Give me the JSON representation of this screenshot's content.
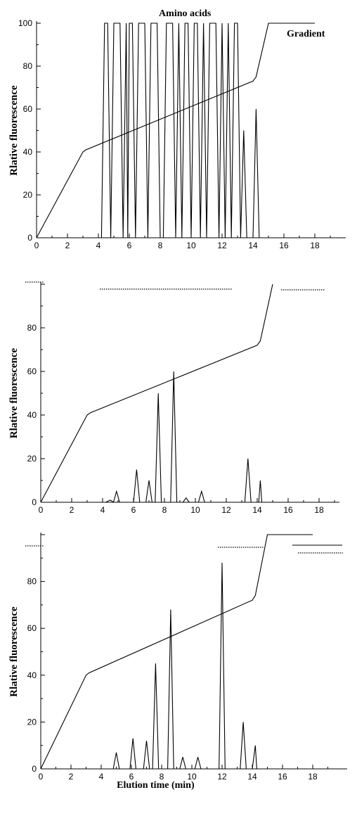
{
  "chart_data": [
    {
      "type": "line",
      "title": "Amino acids",
      "annotation": "Gradient",
      "xlabel": "",
      "ylabel": "Rlative fluorescence",
      "xlim": [
        0,
        19
      ],
      "ylim": [
        0,
        100
      ],
      "xticks": [
        "0",
        "2",
        "4",
        "6",
        "8",
        "10",
        "12",
        "14",
        "16",
        "18"
      ],
      "yticks": [
        "0",
        "20",
        "40",
        "60",
        "80",
        "100"
      ],
      "series": [
        {
          "role": "signal",
          "x": [
            0,
            4.0,
            4.2,
            4.4,
            4.6,
            4.8,
            5.0,
            5.2,
            5.4,
            5.6,
            5.8,
            5.9,
            6.0,
            6.2,
            6.4,
            6.6,
            6.8,
            7.0,
            7.2,
            7.3,
            7.4,
            7.6,
            7.8,
            8.0,
            8.2,
            8.4,
            8.6,
            8.8,
            9.0,
            9.2,
            9.4,
            9.6,
            9.8,
            10.0,
            10.2,
            10.4,
            10.6,
            10.8,
            11.0,
            11.2,
            11.4,
            11.6,
            11.8,
            12.0,
            12.2,
            12.4,
            12.6,
            12.8,
            13.0,
            13.2,
            13.4,
            13.6,
            13.8,
            14.0,
            14.2,
            14.4,
            14.6,
            18
          ],
          "y": [
            0,
            0,
            0,
            100,
            100,
            0,
            100,
            100,
            100,
            0,
            100,
            0,
            100,
            100,
            0,
            100,
            100,
            100,
            0,
            50,
            100,
            100,
            100,
            0,
            0,
            100,
            100,
            100,
            0,
            100,
            0,
            100,
            100,
            0,
            100,
            100,
            0,
            100,
            0,
            100,
            100,
            100,
            0,
            100,
            0,
            100,
            0,
            100,
            100,
            0,
            50,
            0,
            0,
            0,
            60,
            0,
            0,
            0
          ]
        },
        {
          "role": "gradient",
          "x": [
            0,
            3,
            3.2,
            14,
            14.2,
            15,
            18
          ],
          "y": [
            0,
            40,
            41,
            73,
            75,
            100,
            100
          ]
        }
      ]
    },
    {
      "type": "line",
      "title": "",
      "xlabel": "",
      "ylabel": "Rlative fluorescence",
      "xlim": [
        0,
        19
      ],
      "ylim": [
        0,
        100
      ],
      "xticks": [
        "0",
        "2",
        "4",
        "6",
        "8",
        "10",
        "12",
        "14",
        "16",
        "18"
      ],
      "yticks": [
        "0",
        "20",
        "40",
        "60",
        "80"
      ],
      "series": [
        {
          "role": "signal",
          "x": [
            0,
            4.2,
            4.5,
            4.7,
            4.9,
            5.1,
            5.5,
            6.0,
            6.2,
            6.4,
            6.8,
            7.0,
            7.2,
            7.4,
            7.6,
            7.8,
            8.2,
            8.4,
            8.6,
            8.8,
            9.2,
            9.4,
            9.6,
            10.0,
            10.2,
            10.4,
            10.6,
            13.2,
            13.4,
            13.6,
            13.9,
            14.1,
            14.2,
            14.3,
            14.5,
            19
          ],
          "y": [
            0,
            0,
            1,
            0,
            5,
            0,
            0,
            0,
            15,
            0,
            0,
            10,
            0,
            0,
            50,
            0,
            0,
            0,
            60,
            0,
            0,
            2,
            0,
            0,
            0,
            5,
            0,
            0,
            20,
            0,
            0,
            0,
            10,
            0,
            0,
            0
          ]
        },
        {
          "role": "gradient",
          "x": [
            0,
            3,
            3.2,
            14,
            14.2,
            15
          ],
          "y": [
            0,
            40,
            41,
            72,
            74,
            100
          ]
        }
      ]
    },
    {
      "type": "line",
      "title": "",
      "xlabel": "Elution time (min)",
      "ylabel": "Rlative fluorescence",
      "xlim": [
        0,
        19
      ],
      "ylim": [
        0,
        100
      ],
      "xticks": [
        "0",
        "2",
        "4",
        "6",
        "8",
        "10",
        "12",
        "14",
        "16",
        "18"
      ],
      "yticks": [
        "0",
        "20",
        "40",
        "60",
        "80"
      ],
      "series": [
        {
          "role": "signal",
          "x": [
            0,
            4.8,
            5.0,
            5.2,
            5.9,
            6.1,
            6.3,
            6.8,
            7.0,
            7.2,
            7.4,
            7.6,
            7.8,
            8.4,
            8.6,
            8.8,
            9.2,
            9.4,
            9.6,
            10.2,
            10.4,
            10.6,
            11.8,
            12.0,
            12.2,
            13.2,
            13.4,
            13.6,
            14.0,
            14.2,
            14.3,
            19
          ],
          "y": [
            0,
            0,
            7,
            0,
            0,
            13,
            0,
            0,
            12,
            0,
            0,
            45,
            0,
            0,
            68,
            0,
            0,
            5,
            0,
            0,
            5,
            0,
            0,
            88,
            0,
            0,
            20,
            0,
            0,
            10,
            0,
            0
          ]
        },
        {
          "role": "gradient",
          "x": [
            0,
            3,
            3.2,
            14,
            14.2,
            15,
            18
          ],
          "y": [
            0,
            40,
            41,
            72,
            74,
            100,
            100
          ]
        }
      ]
    }
  ]
}
